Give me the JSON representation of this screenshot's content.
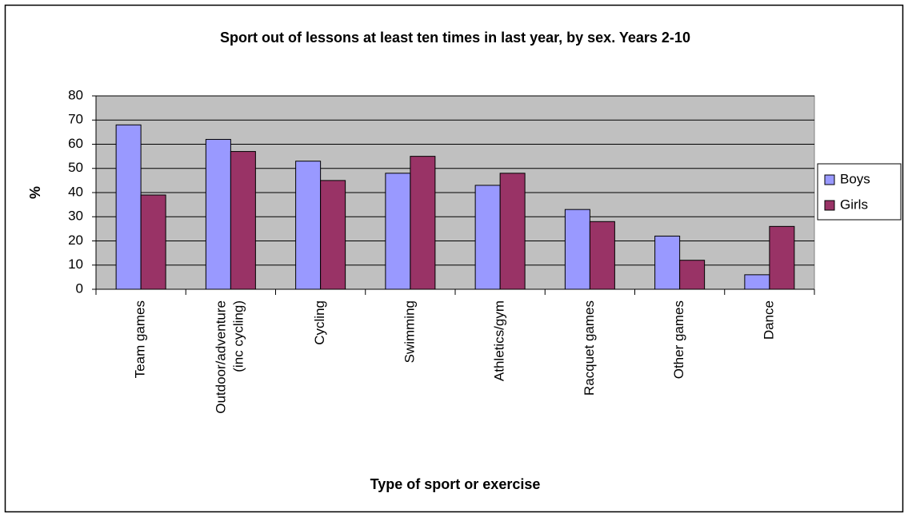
{
  "chart_data": {
    "type": "bar",
    "title": "Sport out of lessons at least ten times in last year, by sex.  Years 2-10",
    "x_label": "Type of sport or exercise",
    "y_label": "%",
    "categories": [
      "Team games",
      "Outdoor/adventure (inc cycling)",
      "Cycling",
      "Swimming",
      "Athletics/gym",
      "Racquet games",
      "Other games",
      "Dance"
    ],
    "series": [
      {
        "name": "Boys",
        "color": "#9999ff",
        "values": [
          68,
          62,
          53,
          48,
          43,
          33,
          22,
          6
        ]
      },
      {
        "name": "Girls",
        "color": "#993366",
        "values": [
          39,
          57,
          45,
          55,
          48,
          28,
          12,
          26
        ]
      }
    ],
    "ylim": [
      0,
      80
    ],
    "yticks": [
      0,
      10,
      20,
      30,
      40,
      50,
      60,
      70,
      80
    ],
    "grid": true,
    "legend": "right",
    "plot_background": "#c0c0c0"
  }
}
